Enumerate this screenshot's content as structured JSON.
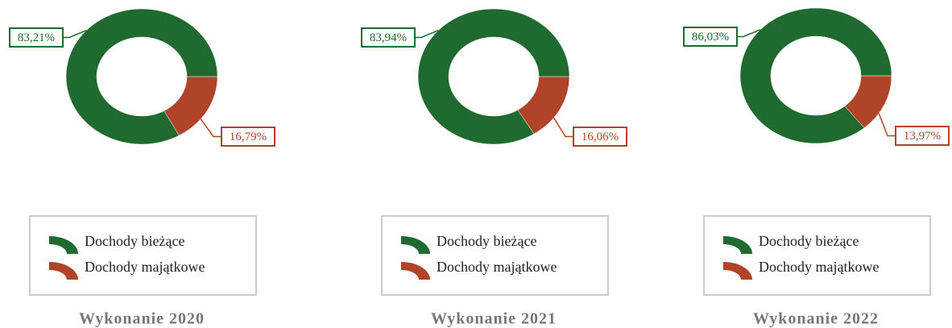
{
  "chart_data": [
    {
      "type": "pie",
      "title": "Wykonanie 2020",
      "categories": [
        "Dochody bieżące",
        "Dochody majątkowe"
      ],
      "values": [
        83.21,
        16.79
      ],
      "value_labels": [
        "83,21%",
        "16,79%"
      ],
      "colors": [
        "#1f6b2f",
        "#b04428"
      ]
    },
    {
      "type": "pie",
      "title": "Wykonanie 2021",
      "categories": [
        "Dochody bieżące",
        "Dochody majątkowe"
      ],
      "values": [
        83.94,
        16.06
      ],
      "value_labels": [
        "83,94%",
        "16,06%"
      ],
      "colors": [
        "#1f6b2f",
        "#b04428"
      ]
    },
    {
      "type": "pie",
      "title": "Wykonanie 2022",
      "categories": [
        "Dochody bieżące",
        "Dochody majątkowe"
      ],
      "values": [
        86.03,
        13.97
      ],
      "value_labels": [
        "86,03%",
        "13,97%"
      ],
      "colors": [
        "#1f6b2f",
        "#b04428"
      ]
    }
  ]
}
